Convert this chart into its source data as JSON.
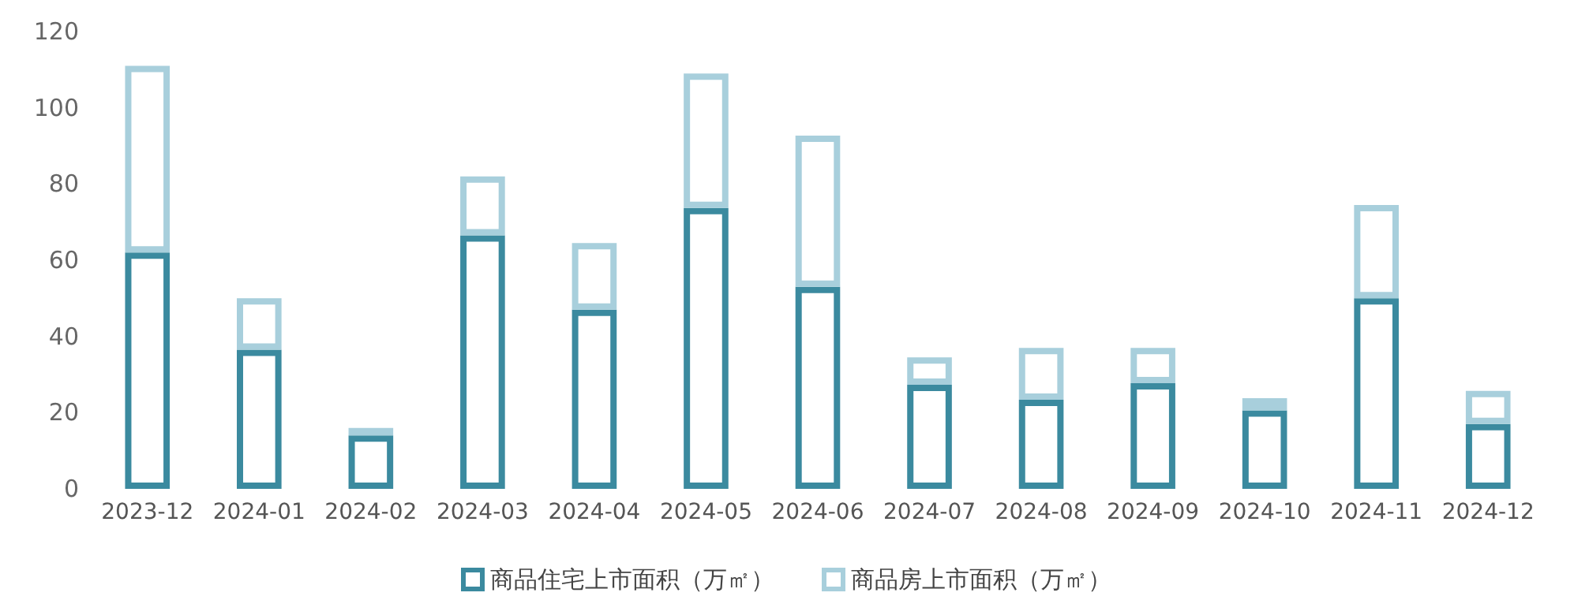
{
  "chart_data": {
    "type": "bar",
    "stacked": true,
    "categories": [
      "2023-12",
      "2024-01",
      "2024-02",
      "2024-03",
      "2024-04",
      "2024-05",
      "2024-06",
      "2024-07",
      "2024-08",
      "2024-09",
      "2024-10",
      "2024-11",
      "2024-12"
    ],
    "series": [
      {
        "name": "商品住宅上市面积（万㎡）",
        "color": "#3b8a9f",
        "values": [
          62,
          36.5,
          14,
          66.5,
          47,
          73.7,
          53,
          27.3,
          23.4,
          27.7,
          20.6,
          50,
          17
        ]
      },
      {
        "name": "商品房上市面积（万㎡）",
        "color": "#a8cfdc",
        "values": [
          49,
          13.5,
          2,
          15.5,
          17.5,
          35.3,
          39.7,
          7.2,
          13.6,
          9.3,
          3.2,
          24.5,
          8.7
        ]
      }
    ],
    "ylim": [
      0,
      120
    ],
    "yticks": [
      0,
      20,
      40,
      60,
      80,
      100,
      120
    ],
    "grid": false,
    "legend": "bottom"
  }
}
